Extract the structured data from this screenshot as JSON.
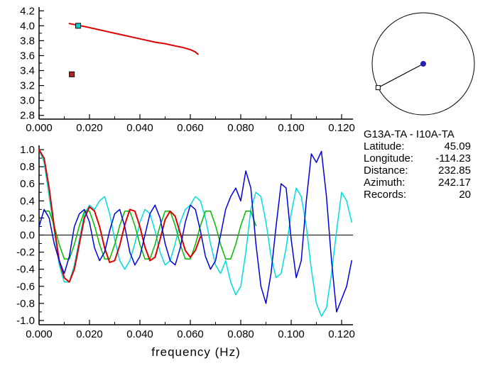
{
  "info": {
    "title": "G13A-TA - I10A-TA",
    "rows": [
      {
        "label": "Latitude:",
        "value": "45.09"
      },
      {
        "label": "Longitude:",
        "value": "-114.23"
      },
      {
        "label": "Distance:",
        "value": "232.85"
      },
      {
        "label": "Azimuth:",
        "value": "242.17"
      },
      {
        "label": "Records:",
        "value": "20"
      }
    ]
  },
  "azimuth_plot": {
    "azimuth_deg": 242.17,
    "circle_color": "#000000",
    "center_dot_color": "#2222aa",
    "endpoint_marker": "open-square"
  },
  "chart_data": [
    {
      "id": "dispersion",
      "type": "line",
      "title": "",
      "xlabel": "",
      "ylabel": "",
      "xlim": [
        0,
        0.1245
      ],
      "ylim": [
        2.75,
        4.25
      ],
      "grid": false,
      "x_ticks": {
        "values": [
          0,
          0.02,
          0.04,
          0.06,
          0.08,
          0.1,
          0.12
        ],
        "labels": [
          "0.000",
          "0.020",
          "0.040",
          "0.060",
          "0.080",
          "0.100",
          "0.120"
        ]
      },
      "y_ticks": {
        "values": [
          2.8,
          3.0,
          3.2,
          3.4,
          3.6,
          3.8,
          4.0,
          4.2
        ],
        "labels": [
          "2.8",
          "3.0",
          "3.2",
          "3.4",
          "3.6",
          "3.8",
          "4.0",
          "4.2"
        ]
      },
      "series": [
        {
          "name": "group-velocity-curve",
          "color": "#dd0000",
          "width": 2,
          "points": [
            [
              0.012,
              4.03
            ],
            [
              0.015,
              4.01
            ],
            [
              0.018,
              3.99
            ],
            [
              0.022,
              3.96
            ],
            [
              0.026,
              3.93
            ],
            [
              0.03,
              3.9
            ],
            [
              0.034,
              3.87
            ],
            [
              0.038,
              3.84
            ],
            [
              0.042,
              3.81
            ],
            [
              0.046,
              3.78
            ],
            [
              0.05,
              3.76
            ],
            [
              0.054,
              3.73
            ],
            [
              0.057,
              3.71
            ],
            [
              0.06,
              3.68
            ],
            [
              0.062,
              3.65
            ],
            [
              0.063,
              3.62
            ]
          ]
        }
      ],
      "markers": [
        {
          "name": "selected-point-marker",
          "x": 0.0155,
          "y": 4.0,
          "color": "#00cdcd"
        },
        {
          "name": "reference-point-marker",
          "x": 0.013,
          "y": 3.35,
          "color": "#b22222"
        }
      ]
    },
    {
      "id": "spectra",
      "type": "line",
      "title": "",
      "xlabel": "frequency (Hz)",
      "ylabel": "",
      "xlim": [
        0,
        0.1245
      ],
      "ylim": [
        -1.05,
        1.05
      ],
      "grid": false,
      "zero_line": true,
      "x_ticks": {
        "values": [
          0,
          0.02,
          0.04,
          0.06,
          0.08,
          0.1,
          0.12
        ],
        "labels": [
          "0.000",
          "0.020",
          "0.040",
          "0.060",
          "0.080",
          "0.100",
          "0.120"
        ]
      },
      "y_ticks": {
        "values": [
          -1.0,
          -0.8,
          -0.6,
          -0.4,
          -0.2,
          0.0,
          0.2,
          0.4,
          0.6,
          0.8,
          1.0
        ],
        "labels": [
          "-1.0",
          "-0.8",
          "-0.6",
          "-0.4",
          "-0.2",
          "0.0",
          "0.2",
          "0.4",
          "0.6",
          "0.8",
          "1.0"
        ]
      },
      "series": [
        {
          "name": "stacked-spectrum-cyan",
          "color": "#00dddd",
          "width": 1.5,
          "x0": 0,
          "dx": 0.002,
          "values": [
            1.0,
            0.85,
            0.45,
            0.05,
            -0.35,
            -0.55,
            -0.55,
            -0.35,
            -0.05,
            0.25,
            0.35,
            0.3,
            0.4,
            0.45,
            0.25,
            -0.05,
            -0.3,
            -0.4,
            -0.3,
            -0.1,
            0.15,
            0.3,
            0.25,
            0.05,
            -0.2,
            -0.35,
            -0.3,
            -0.1,
            0.15,
            0.3,
            0.35,
            0.45,
            0.4,
            0.2,
            -0.1,
            -0.35,
            -0.45,
            -0.3,
            -0.55,
            -0.7,
            -0.6,
            -0.2,
            0.3,
            0.5,
            0.45,
            0.15,
            -0.25,
            -0.5,
            -0.45,
            -0.15,
            0.25,
            0.55,
            0.45,
            0.1,
            -0.4,
            -0.8,
            -0.95,
            -0.85,
            -0.45,
            0.05,
            0.5,
            0.4,
            0.15
          ]
        },
        {
          "name": "model-fit-green",
          "color": "#00bb00",
          "width": 1.5,
          "x0": 0.002,
          "dx": 0.002,
          "values": [
            0.28,
            0.28,
            0.11,
            -0.11,
            -0.28,
            -0.28,
            -0.11,
            0.11,
            0.28,
            0.28,
            0.11,
            -0.11,
            -0.28,
            -0.28,
            -0.11,
            0.11,
            0.28,
            0.28,
            0.11,
            -0.11,
            -0.28,
            -0.28,
            -0.11,
            0.11,
            0.28,
            0.28,
            0.11,
            -0.11,
            -0.28,
            -0.28,
            -0.11,
            0.11,
            0.28,
            0.28,
            0.11,
            -0.11,
            -0.28,
            -0.28,
            -0.11,
            0.11,
            0.28,
            0.28,
            0.11
          ]
        },
        {
          "name": "bessel-fit-red",
          "color": "#dd0000",
          "width": 2,
          "x0": 0,
          "dx": 0.002,
          "values": [
            1.0,
            0.9,
            0.55,
            0.1,
            -0.3,
            -0.5,
            -0.55,
            -0.4,
            -0.1,
            0.2,
            0.33,
            0.28,
            0.1,
            -0.15,
            -0.32,
            -0.3,
            -0.12,
            0.12,
            0.3,
            0.28,
            0.1,
            -0.14,
            -0.3,
            -0.26,
            -0.05,
            0.18,
            0.28,
            0.22,
            0.02,
            -0.18,
            -0.26,
            -0.18,
            -0.02
          ]
        },
        {
          "name": "raw-spectrum-blue",
          "color": "#0000dd",
          "width": 1.5,
          "x0": 0,
          "dx": 0.002,
          "values": [
            0.1,
            0.3,
            0.2,
            -0.1,
            -0.3,
            -0.45,
            -0.25,
            0.1,
            0.25,
            0.3,
            0.15,
            -0.15,
            -0.3,
            -0.2,
            0.05,
            0.25,
            0.3,
            0.1,
            -0.2,
            -0.35,
            -0.25,
            0.0,
            0.25,
            0.35,
            0.2,
            -0.1,
            -0.3,
            -0.35,
            -0.15,
            0.15,
            0.35,
            0.3,
            0.05,
            -0.25,
            -0.4,
            -0.3,
            0.0,
            0.3,
            0.45,
            0.55,
            0.4,
            0.75,
            0.55,
            -0.1,
            -0.6,
            -0.8,
            -0.45,
            0.1,
            0.6,
            0.55,
            -0.05,
            -0.5,
            -0.3,
            0.4,
            0.95,
            0.85,
            0.98,
            0.45,
            -0.3,
            -0.9,
            -0.75,
            -0.6,
            -0.3
          ]
        }
      ]
    }
  ]
}
